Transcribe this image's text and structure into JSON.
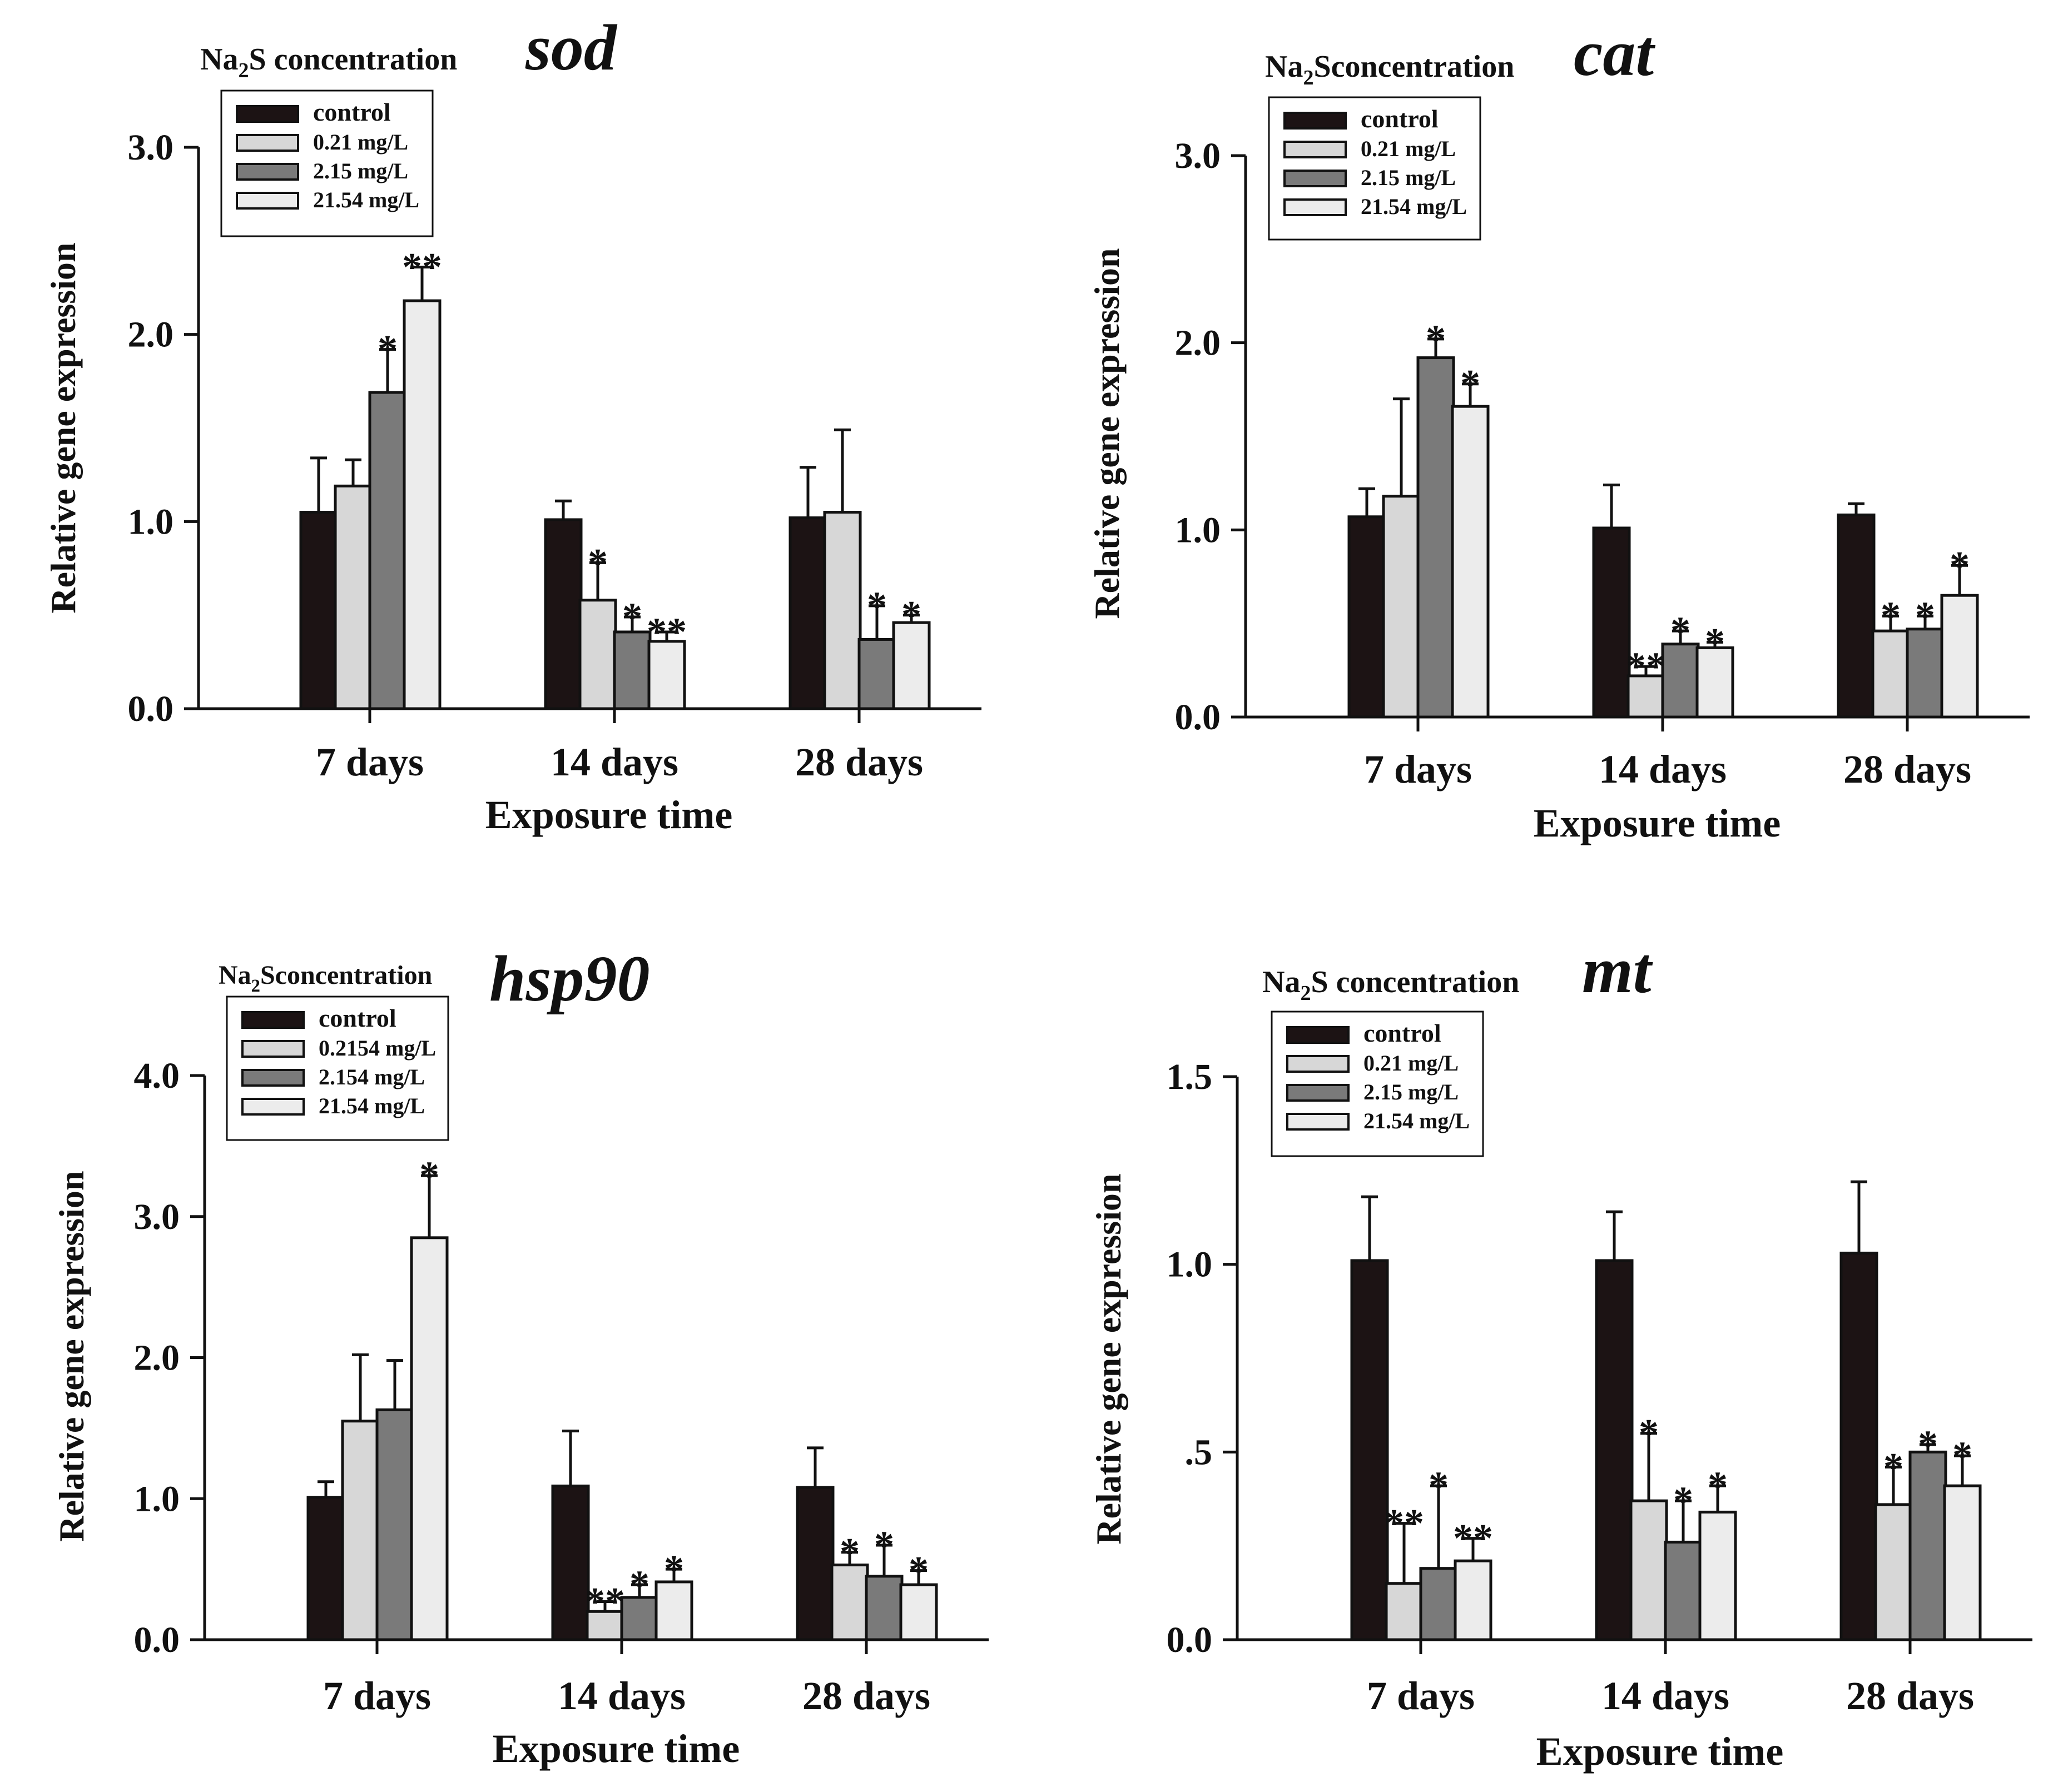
{
  "chart_data": [
    {
      "type": "bar",
      "gene": "sod",
      "legend_title": "Na2S concentration",
      "legend_title_parts": {
        "pre": "Na",
        "sub": "2",
        "post": "S concentration"
      },
      "legend": [
        "control",
        "0.21 mg/L",
        "2.15 mg/L",
        "21.54 mg/L"
      ],
      "categories": [
        "7 days",
        "14 days",
        "28 days"
      ],
      "xlabel": "Exposure time",
      "ylabel": "Relative gene expression",
      "ylim": [
        0,
        3.0
      ],
      "yticks": [
        0.0,
        1.0,
        2.0,
        3.0
      ],
      "ytick_labels": [
        "0.0",
        "1.0",
        "2.0",
        "3.0"
      ],
      "series": [
        {
          "name": "control",
          "values": [
            1.05,
            1.01,
            1.02
          ],
          "errors": [
            0.29,
            0.1,
            0.27
          ],
          "marks": [
            "",
            "",
            ""
          ]
        },
        {
          "name": "0.21 mg/L",
          "values": [
            1.19,
            0.58,
            1.05
          ],
          "errors": [
            0.14,
            0.2,
            0.44
          ],
          "marks": [
            "",
            "*",
            ""
          ]
        },
        {
          "name": "2.15 mg/L",
          "values": [
            1.69,
            0.41,
            0.37
          ],
          "errors": [
            0.23,
            0.08,
            0.18
          ],
          "marks": [
            "*",
            "*",
            "*"
          ]
        },
        {
          "name": "21.54 mg/L",
          "values": [
            2.18,
            0.36,
            0.46
          ],
          "errors": [
            0.18,
            0.05,
            0.04
          ],
          "marks": [
            "**",
            "**",
            "*"
          ]
        }
      ]
    },
    {
      "type": "bar",
      "gene": "cat",
      "legend_title": "Na2Sconcentration",
      "legend_title_parts": {
        "pre": "Na",
        "sub": "2",
        "post": "Sconcentration"
      },
      "legend": [
        "control",
        "0.21 mg/L",
        "2.15 mg/L",
        "21.54 mg/L"
      ],
      "categories": [
        "7 days",
        "14 days",
        "28 days"
      ],
      "xlabel": "Exposure time",
      "ylabel": "Relative gene expression",
      "ylim": [
        0,
        3.0
      ],
      "yticks": [
        0.0,
        1.0,
        2.0,
        3.0
      ],
      "ytick_labels": [
        "0.0",
        "1.0",
        "2.0",
        "3.0"
      ],
      "series": [
        {
          "name": "control",
          "values": [
            1.07,
            1.01,
            1.08
          ],
          "errors": [
            0.15,
            0.23,
            0.06
          ],
          "marks": [
            "",
            "",
            ""
          ]
        },
        {
          "name": "0.21 mg/L",
          "values": [
            1.18,
            0.22,
            0.46
          ],
          "errors": [
            0.52,
            0.05,
            0.08
          ],
          "marks": [
            "",
            "**",
            "*"
          ]
        },
        {
          "name": "2.15 mg/L",
          "values": [
            1.92,
            0.39,
            0.47
          ],
          "errors": [
            0.1,
            0.07,
            0.07
          ],
          "marks": [
            "*",
            "*",
            "*"
          ]
        },
        {
          "name": "21.54 mg/L",
          "values": [
            1.66,
            0.37,
            0.65
          ],
          "errors": [
            0.12,
            0.03,
            0.16
          ],
          "marks": [
            "*",
            "*",
            "*"
          ]
        }
      ]
    },
    {
      "type": "bar",
      "gene": "hsp90",
      "legend_title": "Na2Sconcentration",
      "legend_title_parts": {
        "pre": "Na",
        "sub": "2",
        "post": "Sconcentration"
      },
      "legend": [
        "control",
        "0.2154 mg/L",
        "2.154 mg/L",
        "21.54 mg/L"
      ],
      "categories": [
        "7 days",
        "14 days",
        "28 days"
      ],
      "xlabel": "Exposure time",
      "ylabel": "Relative gene expression",
      "ylim": [
        0,
        4.0
      ],
      "yticks": [
        0.0,
        1.0,
        2.0,
        3.0,
        4.0
      ],
      "ytick_labels": [
        "0.0",
        "1.0",
        "2.0",
        "3.0",
        "4.0"
      ],
      "series": [
        {
          "name": "control",
          "values": [
            1.01,
            1.09,
            1.08
          ],
          "errors": [
            0.11,
            0.39,
            0.28
          ],
          "marks": [
            "",
            "",
            ""
          ]
        },
        {
          "name": "0.2154 mg/L",
          "values": [
            1.55,
            0.2,
            0.53
          ],
          "errors": [
            0.47,
            0.07,
            0.09
          ],
          "marks": [
            "",
            "**",
            "*"
          ]
        },
        {
          "name": "2.154 mg/L",
          "values": [
            1.63,
            0.3,
            0.45
          ],
          "errors": [
            0.35,
            0.09,
            0.22
          ],
          "marks": [
            "",
            "*",
            "*"
          ]
        },
        {
          "name": "21.54 mg/L",
          "values": [
            2.85,
            0.41,
            0.39
          ],
          "errors": [
            0.44,
            0.09,
            0.1
          ],
          "marks": [
            "*",
            "*",
            "*"
          ]
        }
      ]
    },
    {
      "type": "bar",
      "gene": "mt",
      "legend_title": "Na2S concentration",
      "legend_title_parts": {
        "pre": "Na",
        "sub": "2",
        "post": "S concentration"
      },
      "legend": [
        "control",
        "0.21 mg/L",
        "2.15 mg/L",
        "21.54 mg/L"
      ],
      "categories": [
        "7 days",
        "14 days",
        "28 days"
      ],
      "xlabel": "Exposure time",
      "ylabel": "Relative gene expression",
      "ylim": [
        0,
        1.5
      ],
      "yticks": [
        0.0,
        0.5,
        1.0,
        1.5
      ],
      "ytick_labels": [
        "0.0",
        ".5",
        "1.0",
        "1.5"
      ],
      "series": [
        {
          "name": "control",
          "values": [
            1.01,
            1.01,
            1.03
          ],
          "errors": [
            0.17,
            0.13,
            0.19
          ],
          "marks": [
            "",
            "",
            ""
          ]
        },
        {
          "name": "0.21 mg/L",
          "values": [
            0.15,
            0.37,
            0.36
          ],
          "errors": [
            0.16,
            0.18,
            0.1
          ],
          "marks": [
            "**",
            "*",
            "*"
          ]
        },
        {
          "name": "2.15 mg/L",
          "values": [
            0.19,
            0.26,
            0.5
          ],
          "errors": [
            0.22,
            0.11,
            0.02
          ],
          "marks": [
            "*",
            "*",
            "*"
          ]
        },
        {
          "name": "21.54 mg/L",
          "values": [
            0.21,
            0.34,
            0.41
          ],
          "errors": [
            0.06,
            0.07,
            0.08
          ],
          "marks": [
            "**",
            "*",
            "*"
          ]
        }
      ]
    }
  ],
  "colors": {
    "control": "#1c1314",
    "light": "#d7d7d7",
    "dark": "#7a7a7a",
    "lightest": "#ececec",
    "stroke": "#111111"
  }
}
